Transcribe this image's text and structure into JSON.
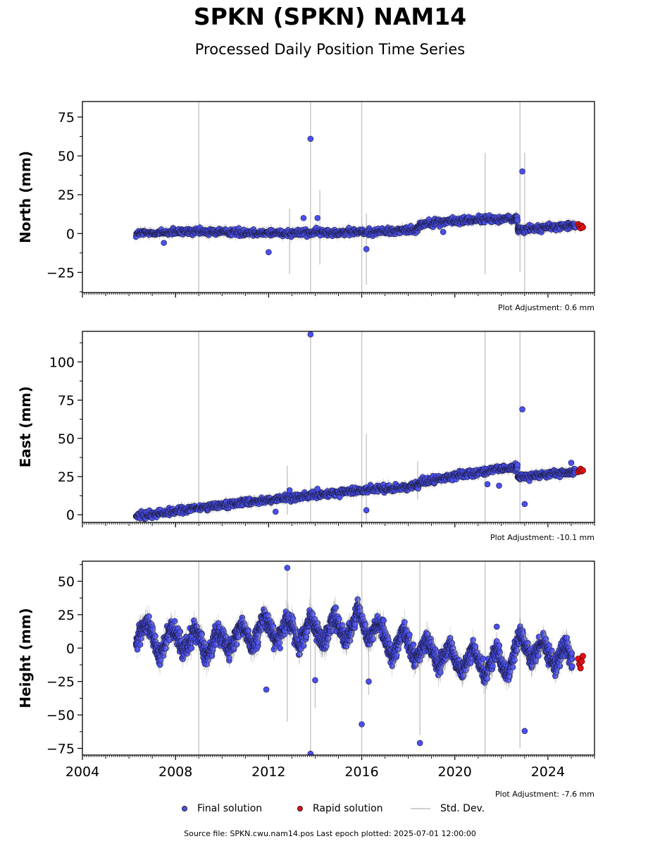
{
  "header": {
    "title": "SPKN (SPKN) NAM14",
    "subtitle": "Processed Daily Position Time Series"
  },
  "colors": {
    "final": "#4a4ff0",
    "rapid": "#e01010",
    "stddev": "#c8c8c8"
  },
  "legend": {
    "final_label": "Final solution",
    "rapid_label": "Rapid solution",
    "stddev_label": "Std. Dev."
  },
  "footer": {
    "source": "Source file: SPKN.cwu.nam14.pos  Last epoch plotted: 2025-07-01 12:00:00"
  },
  "chart_data": [
    {
      "type": "scatter",
      "ylabel": "North (mm)",
      "xlim": [
        2004,
        2026
      ],
      "ylim": [
        -38,
        85
      ],
      "yticks": [
        -25,
        0,
        25,
        50,
        75
      ],
      "ytick_labels": [
        "−25",
        "0",
        "25",
        "50",
        "75"
      ],
      "xticks": [
        2004,
        2008,
        2012,
        2016,
        2020,
        2024
      ],
      "show_xtick_labels": false,
      "adjustment": "Plot Adjustment: 0.6 mm",
      "grid": false,
      "series": [
        {
          "name": "Final solution",
          "x": [
            2006.3,
            2006.8,
            2007.3,
            2007.8,
            2008.3,
            2008.8,
            2009.3,
            2009.8,
            2010.3,
            2010.8,
            2011.3,
            2011.8,
            2012.3,
            2012.8,
            2013.3,
            2013.8,
            2014.3,
            2014.8,
            2015.3,
            2015.8,
            2016.3,
            2016.8,
            2017.3,
            2017.8,
            2018.3,
            2018.6,
            2019.1,
            2019.6,
            2020.1,
            2020.6,
            2021.1,
            2021.6,
            2022.1,
            2022.6,
            2022.8,
            2023.3,
            2023.8,
            2024.3,
            2024.8,
            2025.2
          ],
          "y": [
            0,
            0.3,
            0.6,
            0.8,
            1,
            1.1,
            1.2,
            1.1,
            1,
            0.8,
            0.6,
            0.5,
            0.5,
            0.5,
            0.6,
            0.7,
            0.8,
            0.9,
            0.9,
            1,
            1,
            1.3,
            1.7,
            2.1,
            2.6,
            6.5,
            7,
            7.6,
            8.2,
            8.7,
            9.1,
            9.3,
            9.4,
            9.6,
            3,
            3.2,
            3.6,
            4.2,
            4.8,
            5.4
          ],
          "outliers": [
            [
              2013.8,
              61
            ],
            [
              2022.9,
              40
            ],
            [
              2012.0,
              -12
            ],
            [
              2013.5,
              10
            ],
            [
              2014.1,
              10
            ],
            [
              2016.2,
              -10
            ],
            [
              2007.5,
              -6
            ],
            [
              2019.5,
              1
            ]
          ]
        },
        {
          "name": "Rapid solution",
          "x": [
            2025.3,
            2025.35,
            2025.4,
            2025.45,
            2025.5
          ],
          "y": [
            6,
            4.5,
            3.5,
            5,
            4
          ]
        }
      ],
      "stddev_spikes": [
        [
          2009.0,
          -45,
          85
        ],
        [
          2013.8,
          -45,
          85
        ],
        [
          2016.0,
          -45,
          85
        ],
        [
          2022.8,
          -25,
          85
        ],
        [
          2023.0,
          -45,
          52
        ],
        [
          2021.3,
          -26,
          52
        ],
        [
          2012.9,
          -26,
          16
        ],
        [
          2014.2,
          -20,
          28
        ],
        [
          2016.2,
          -33,
          13
        ]
      ]
    },
    {
      "type": "scatter",
      "ylabel": "East (mm)",
      "xlim": [
        2004,
        2026
      ],
      "ylim": [
        -5,
        120
      ],
      "yticks": [
        0,
        25,
        50,
        75,
        100
      ],
      "ytick_labels": [
        "0",
        "25",
        "50",
        "75",
        "100"
      ],
      "xticks": [
        2004,
        2008,
        2012,
        2016,
        2020,
        2024
      ],
      "show_xtick_labels": false,
      "adjustment": "Plot Adjustment: -10.1 mm",
      "grid": false,
      "series": [
        {
          "name": "Final solution",
          "x": [
            2006.3,
            2006.8,
            2007.3,
            2007.8,
            2008.3,
            2008.8,
            2009.3,
            2009.8,
            2010.3,
            2010.8,
            2011.3,
            2011.8,
            2012.3,
            2012.8,
            2013.3,
            2013.8,
            2014.3,
            2014.8,
            2015.3,
            2015.8,
            2016.3,
            2016.8,
            2017.3,
            2017.8,
            2018.3,
            2018.6,
            2019.1,
            2019.6,
            2020.1,
            2020.6,
            2021.1,
            2021.6,
            2022.1,
            2022.6,
            2022.8,
            2023.3,
            2023.8,
            2024.3,
            2024.8,
            2025.2
          ],
          "y": [
            -1,
            0,
            1,
            2,
            3,
            4,
            5,
            6,
            7,
            8,
            9,
            9.5,
            10,
            11,
            12,
            12.5,
            13,
            14,
            15,
            16,
            16.5,
            17,
            17.5,
            18,
            19,
            22,
            23,
            24,
            26,
            27,
            28,
            29,
            30,
            31,
            25,
            25.5,
            26,
            27,
            27.5,
            28
          ],
          "outliers": [
            [
              2013.8,
              118
            ],
            [
              2022.9,
              69
            ],
            [
              2023.0,
              7
            ],
            [
              2016.2,
              3
            ],
            [
              2012.3,
              2
            ],
            [
              2021.4,
              20
            ],
            [
              2021.9,
              19
            ],
            [
              2025.0,
              34
            ],
            [
              2012.9,
              16
            ],
            [
              2014.1,
              17
            ]
          ]
        },
        {
          "name": "Rapid solution",
          "x": [
            2025.3,
            2025.35,
            2025.4,
            2025.45,
            2025.5
          ],
          "y": [
            28,
            29,
            30,
            28.5,
            29
          ]
        }
      ],
      "stddev_spikes": [
        [
          2009.0,
          -10,
          125
        ],
        [
          2013.8,
          -10,
          125
        ],
        [
          2016.0,
          -10,
          125
        ],
        [
          2021.3,
          -10,
          125
        ],
        [
          2022.8,
          -10,
          125
        ],
        [
          2016.2,
          -5,
          53
        ],
        [
          2012.8,
          0,
          32
        ],
        [
          2018.4,
          10,
          35
        ]
      ]
    },
    {
      "type": "scatter",
      "ylabel": "Height (mm)",
      "xlim": [
        2004,
        2026
      ],
      "ylim": [
        -80,
        65
      ],
      "yticks": [
        -75,
        -50,
        -25,
        0,
        25,
        50
      ],
      "ytick_labels": [
        "−75",
        "−50",
        "−25",
        "0",
        "25",
        "50"
      ],
      "xticks": [
        2004,
        2008,
        2012,
        2016,
        2020,
        2024
      ],
      "xtick_labels": [
        "2004",
        "2008",
        "2012",
        "2016",
        "2020",
        "2024"
      ],
      "show_xtick_labels": true,
      "adjustment": "Plot Adjustment: -7.6 mm",
      "grid": false,
      "series": [
        {
          "name": "Final solution",
          "x": [
            2006.3,
            2006.55,
            2006.8,
            2007.05,
            2007.3,
            2007.55,
            2007.8,
            2008.05,
            2008.3,
            2008.55,
            2008.8,
            2009.05,
            2009.3,
            2009.55,
            2009.8,
            2010.05,
            2010.3,
            2010.55,
            2010.8,
            2011.05,
            2011.3,
            2011.55,
            2011.8,
            2012.05,
            2012.3,
            2012.55,
            2012.8,
            2013.05,
            2013.3,
            2013.55,
            2013.8,
            2014.05,
            2014.3,
            2014.55,
            2014.8,
            2015.05,
            2015.3,
            2015.55,
            2015.8,
            2016.05,
            2016.3,
            2016.55,
            2016.8,
            2017.05,
            2017.3,
            2017.55,
            2017.8,
            2018.05,
            2018.3,
            2018.55,
            2018.8,
            2019.05,
            2019.3,
            2019.55,
            2019.8,
            2020.05,
            2020.3,
            2020.55,
            2020.8,
            2021.05,
            2021.3,
            2021.55,
            2021.8,
            2022.05,
            2022.3,
            2022.55,
            2022.8,
            2023.05,
            2023.3,
            2023.55,
            2023.8,
            2024.05,
            2024.3,
            2024.55,
            2024.8,
            2025.05
          ],
          "y": [
            5,
            12,
            18,
            8,
            -5,
            4,
            15,
            10,
            -3,
            5,
            14,
            8,
            -8,
            2,
            12,
            8,
            -3,
            5,
            18,
            12,
            0,
            10,
            25,
            16,
            5,
            10,
            22,
            15,
            2,
            12,
            24,
            14,
            4,
            10,
            24,
            16,
            6,
            14,
            30,
            20,
            8,
            14,
            20,
            6,
            -8,
            2,
            14,
            2,
            -10,
            -2,
            6,
            -2,
            -14,
            -6,
            4,
            -10,
            -18,
            -8,
            2,
            -12,
            -20,
            -10,
            0,
            -14,
            -20,
            -4,
            12,
            2,
            -10,
            -2,
            6,
            -6,
            -14,
            -4,
            4,
            -12
          ],
          "outliers": [
            [
              2012.8,
              60
            ],
            [
              2013.8,
              -79
            ],
            [
              2014.0,
              -24
            ],
            [
              2011.9,
              -31
            ],
            [
              2016.0,
              -57
            ],
            [
              2018.5,
              -71
            ],
            [
              2023.0,
              -62
            ],
            [
              2021.8,
              16
            ],
            [
              2016.3,
              -25
            ]
          ]
        },
        {
          "name": "Rapid solution",
          "x": [
            2025.3,
            2025.35,
            2025.4,
            2025.45,
            2025.5
          ],
          "y": [
            -8,
            -12,
            -15,
            -10,
            -6
          ]
        }
      ],
      "stddev_spikes": [
        [
          2009.0,
          -82,
          65
        ],
        [
          2013.8,
          -82,
          65
        ],
        [
          2016.0,
          -82,
          65
        ],
        [
          2018.5,
          -65,
          65
        ],
        [
          2021.3,
          -82,
          65
        ],
        [
          2022.8,
          -75,
          65
        ],
        [
          2012.8,
          -55,
          60
        ],
        [
          2014.0,
          -45,
          20
        ],
        [
          2016.3,
          -35,
          15
        ]
      ]
    }
  ]
}
